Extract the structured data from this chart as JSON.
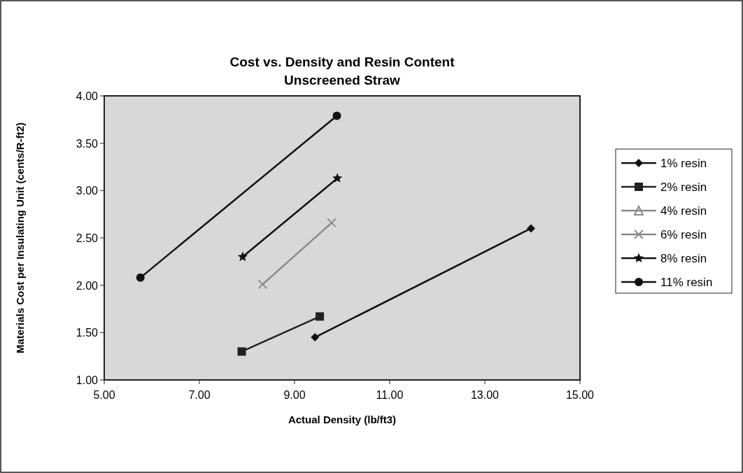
{
  "chart_data": {
    "type": "line",
    "title": "Cost vs. Density and Resin Content",
    "subtitle": "Unscreened Straw",
    "xlabel": "Actual Density (lb/ft3)",
    "ylabel": "Materials Cost per Insulating Unit (cents/R-ft2)",
    "xlim": [
      5,
      15
    ],
    "xticks": [
      {
        "value": 5,
        "label": "5.00"
      },
      {
        "value": 7,
        "label": "7.00"
      },
      {
        "value": 9,
        "label": "9.00"
      },
      {
        "value": 11,
        "label": "11.00"
      },
      {
        "value": 13,
        "label": "13.00"
      },
      {
        "value": 15,
        "label": "15.00"
      }
    ],
    "ylim": [
      1,
      4
    ],
    "yticks": [
      {
        "value": 1,
        "label": "1.00"
      },
      {
        "value": 1.5,
        "label": "1.50"
      },
      {
        "value": 2,
        "label": "2.00"
      },
      {
        "value": 2.5,
        "label": "2.50"
      },
      {
        "value": 3,
        "label": "3.00"
      },
      {
        "value": 3.5,
        "label": "3.50"
      },
      {
        "value": 4,
        "label": "4.00"
      }
    ],
    "grid": false,
    "legend": "right",
    "series": [
      {
        "name": "1% resin",
        "color": "#111111",
        "marker": "diamond",
        "x": [
          9.43,
          13.97
        ],
        "values": [
          1.45,
          2.6
        ]
      },
      {
        "name": "2% resin",
        "color": "#222222",
        "marker": "square",
        "x": [
          7.89,
          9.53
        ],
        "values": [
          1.3,
          1.67
        ]
      },
      {
        "name": "4% resin",
        "color": "#8a8a8a",
        "marker": "triangle"
      },
      {
        "name": "6% resin",
        "color": "#8a8a8a",
        "marker": "cross",
        "x": [
          8.33,
          9.78
        ],
        "values": [
          2.01,
          2.66
        ]
      },
      {
        "name": "8% resin",
        "color": "#111111",
        "marker": "star",
        "x": [
          7.91,
          9.9
        ],
        "values": [
          2.3,
          3.13
        ]
      },
      {
        "name": "11% resin",
        "color": "#111111",
        "marker": "circle",
        "x": [
          5.76,
          9.89
        ],
        "values": [
          2.08,
          3.79
        ]
      }
    ]
  }
}
